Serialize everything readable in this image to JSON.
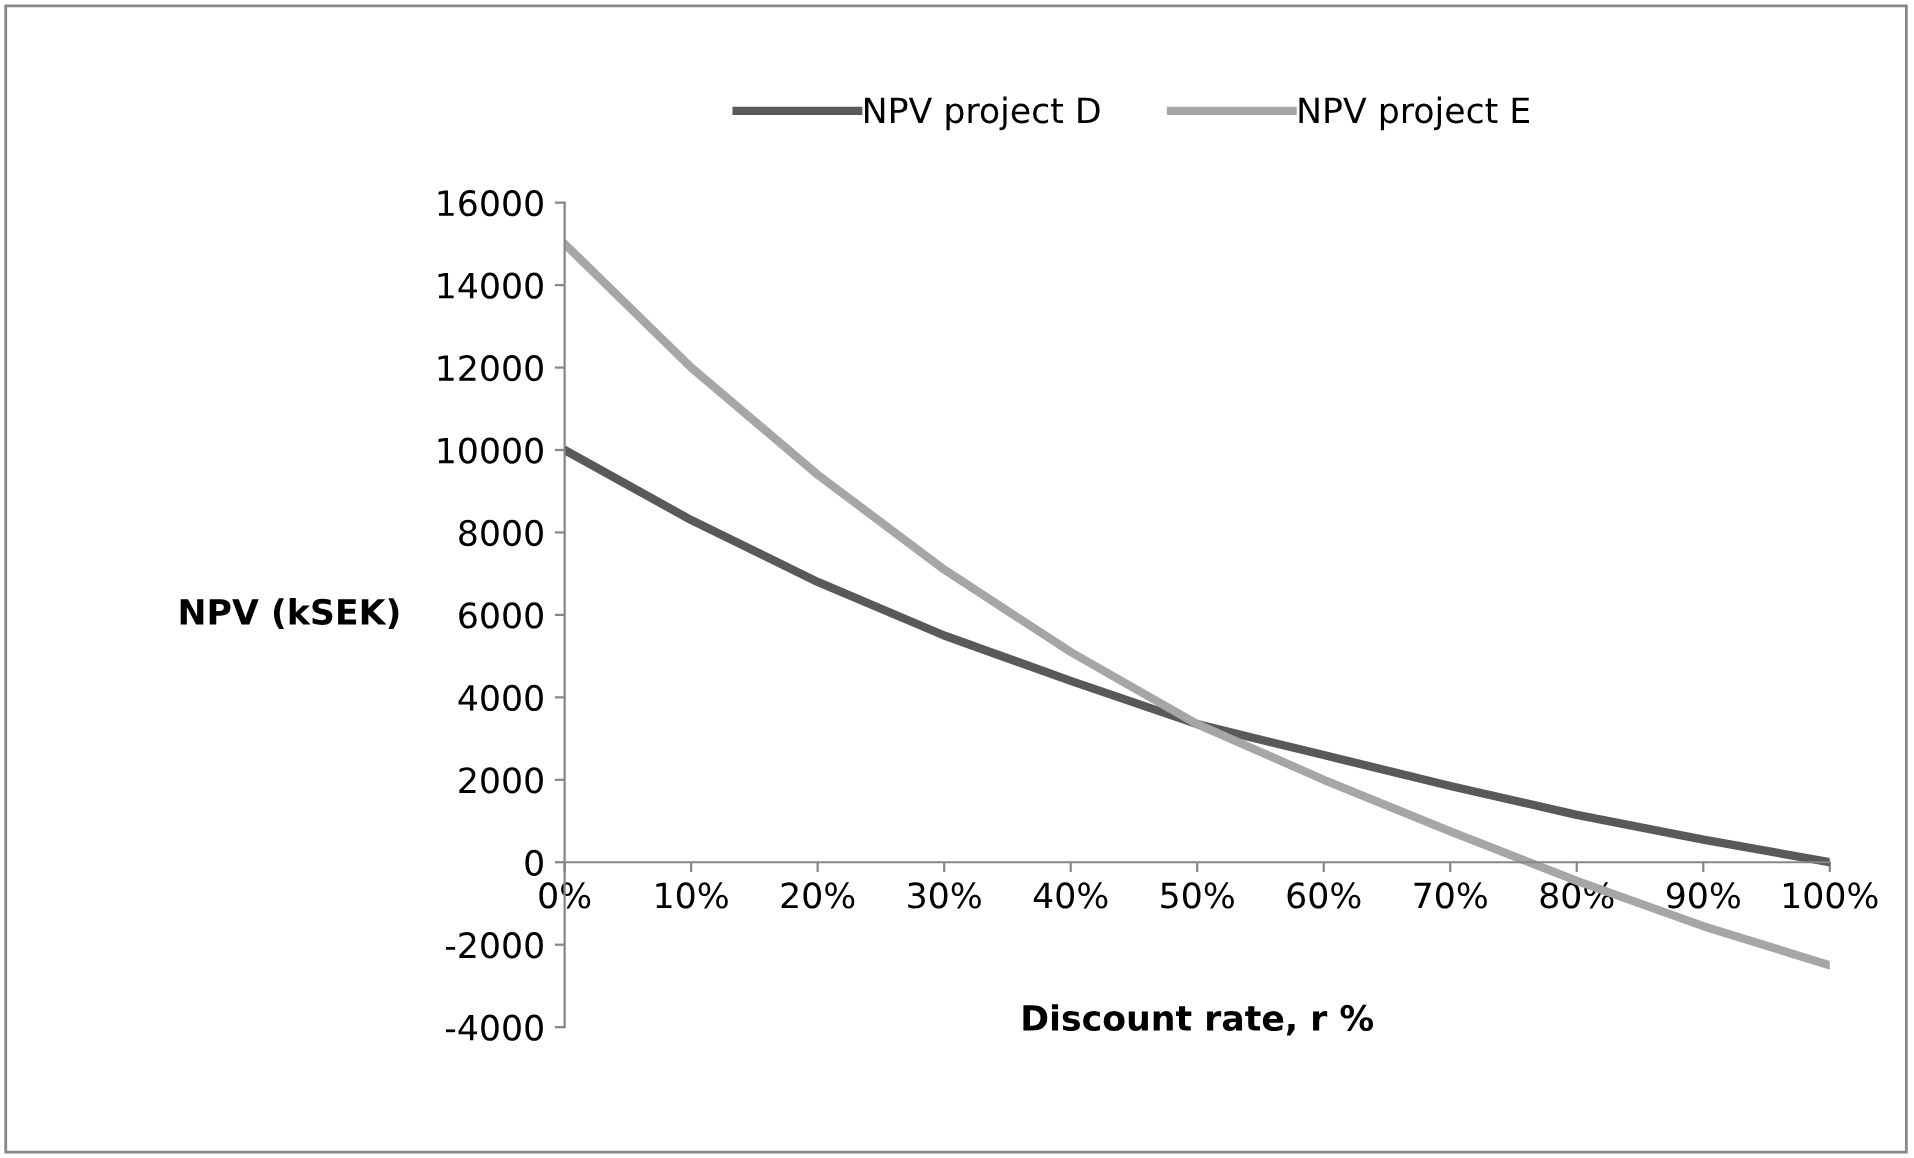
{
  "chart_data": {
    "type": "line",
    "xlabel": "Discount rate, r %",
    "ylabel": "NPV (kSEK)",
    "x": [
      0,
      10,
      20,
      30,
      40,
      50,
      60,
      70,
      80,
      90,
      100
    ],
    "series": [
      {
        "name": "NPV project D",
        "color": "#595959",
        "values": [
          10000,
          8300,
          6800,
          5500,
          4400,
          3350,
          2600,
          1850,
          1150,
          550,
          0
        ]
      },
      {
        "name": "NPV project E",
        "color": "#a6a6a6",
        "values": [
          15000,
          12000,
          9400,
          7100,
          5100,
          3350,
          2000,
          750,
          -450,
          -1550,
          -2500
        ]
      }
    ],
    "xlim": [
      0,
      100
    ],
    "xticks": [
      {
        "value": 0,
        "label": "0%"
      },
      {
        "value": 10,
        "label": "10%"
      },
      {
        "value": 20,
        "label": "20%"
      },
      {
        "value": 30,
        "label": "30%"
      },
      {
        "value": 40,
        "label": "40%"
      },
      {
        "value": 50,
        "label": "50%"
      },
      {
        "value": 60,
        "label": "60%"
      },
      {
        "value": 70,
        "label": "70%"
      },
      {
        "value": 80,
        "label": "80%"
      },
      {
        "value": 90,
        "label": "90%"
      },
      {
        "value": 100,
        "label": "100%"
      }
    ],
    "ylim": [
      -4000,
      16000
    ],
    "yticks": [
      -4000,
      -2000,
      0,
      2000,
      4000,
      6000,
      8000,
      10000,
      12000,
      14000,
      16000
    ],
    "grid": false,
    "legend": "top",
    "marker": "none",
    "line_style": "solid"
  }
}
